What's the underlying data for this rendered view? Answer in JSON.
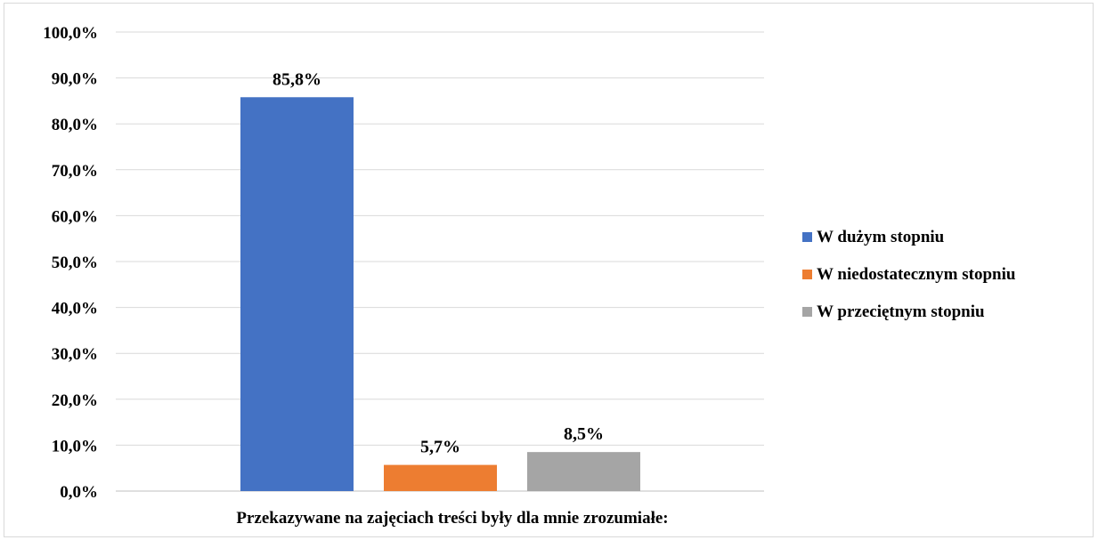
{
  "chart_data": {
    "type": "bar",
    "categories": [
      "Przekazywane na zajęciach treści były dla mnie zrozumiałe:"
    ],
    "series": [
      {
        "name": "W dużym stopniu",
        "values": [
          85.8
        ],
        "label": "85,8%",
        "color": "#4472c4"
      },
      {
        "name": "W niedostatecznym stopniu",
        "values": [
          5.7
        ],
        "label": "5,7%",
        "color": "#ed7d31"
      },
      {
        "name": "W przeciętnym stopniu",
        "values": [
          8.5
        ],
        "label": "8,5%",
        "color": "#a5a5a5"
      }
    ],
    "ylim": [
      0,
      100
    ],
    "yticks": [
      0,
      10,
      20,
      30,
      40,
      50,
      60,
      70,
      80,
      90,
      100
    ],
    "ytick_labels": [
      "0,0%",
      "10,0%",
      "20,0%",
      "30,0%",
      "40,0%",
      "50,0%",
      "60,0%",
      "70,0%",
      "80,0%",
      "90,0%",
      "100,0%"
    ],
    "grid": true,
    "legend_position": "right",
    "title": "",
    "xlabel": "",
    "ylabel": ""
  }
}
